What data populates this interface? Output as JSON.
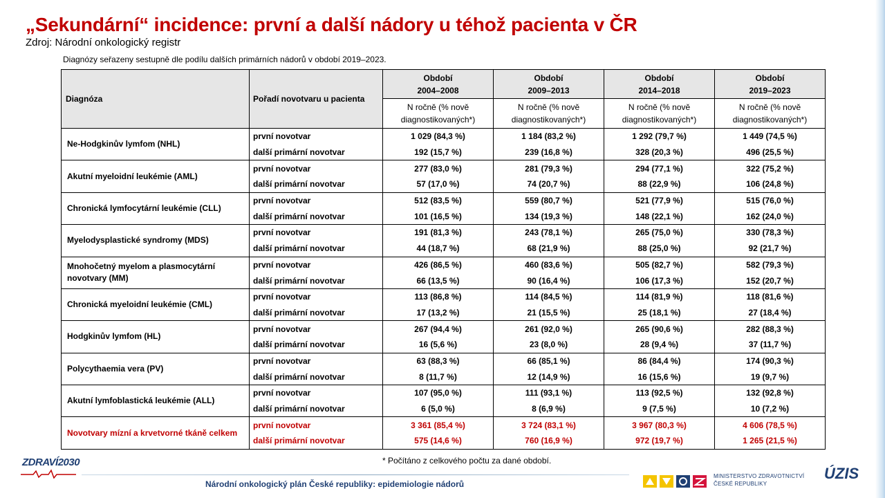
{
  "title": "„Sekundární“ incidence: první a další nádory u téhož pacienta v ČR",
  "source": "Zdroj: Národní onkologický registr",
  "sort_note": "Diagnózy seřazeny sestupně dle podílu dalších primárních nádorů v období 2019–2023.",
  "table": {
    "col_diagnosis": "Diagnóza",
    "col_order": "Pořadí novotvaru u pacienta",
    "periods": [
      {
        "label": "Období",
        "years": "2004–2008"
      },
      {
        "label": "Období",
        "years": "2009–2013"
      },
      {
        "label": "Období",
        "years": "2014–2018"
      },
      {
        "label": "Období",
        "years": "2019–2023"
      }
    ],
    "subheader": "N ročně (% nově diagnostikovaných*)",
    "row_first": "první novotvar",
    "row_next": "další primární novotvar",
    "rows": [
      {
        "diagnosis": "Ne-Hodgkinův lymfom (NHL)",
        "first": [
          "1 029 (84,3 %)",
          "1 184 (83,2 %)",
          "1 292 (79,7 %)",
          "1 449 (74,5 %)"
        ],
        "next": [
          "192 (15,7 %)",
          "239 (16,8 %)",
          "328 (20,3 %)",
          "496 (25,5 %)"
        ]
      },
      {
        "diagnosis": "Akutní myeloidní leukémie (AML)",
        "first": [
          "277 (83,0 %)",
          "281 (79,3 %)",
          "294 (77,1 %)",
          "322 (75,2 %)"
        ],
        "next": [
          "57 (17,0 %)",
          "74 (20,7 %)",
          "88 (22,9 %)",
          "106 (24,8 %)"
        ]
      },
      {
        "diagnosis": "Chronická lymfocytární leukémie (CLL)",
        "first": [
          "512 (83,5 %)",
          "559 (80,7 %)",
          "521 (77,9 %)",
          "515 (76,0 %)"
        ],
        "next": [
          "101 (16,5 %)",
          "134 (19,3 %)",
          "148 (22,1 %)",
          "162 (24,0 %)"
        ]
      },
      {
        "diagnosis": "Myelodysplastické syndromy (MDS)",
        "first": [
          "191 (81,3 %)",
          "243 (78,1 %)",
          "265 (75,0 %)",
          "330 (78,3 %)"
        ],
        "next": [
          "44 (18,7 %)",
          "68 (21,9 %)",
          "88 (25,0 %)",
          "92 (21,7 %)"
        ]
      },
      {
        "diagnosis": "Mnohočetný myelom a plasmocytární novotvary (MM)",
        "first": [
          "426 (86,5 %)",
          "460 (83,6 %)",
          "505 (82,7 %)",
          "582 (79,3 %)"
        ],
        "next": [
          "66 (13,5 %)",
          "90 (16,4 %)",
          "106 (17,3 %)",
          "152 (20,7 %)"
        ]
      },
      {
        "diagnosis": "Chronická myeloidní leukémie (CML)",
        "first": [
          "113 (86,8 %)",
          "114 (84,5 %)",
          "114 (81,9 %)",
          "118 (81,6 %)"
        ],
        "next": [
          "17 (13,2 %)",
          "21 (15,5 %)",
          "25 (18,1 %)",
          "27 (18,4 %)"
        ]
      },
      {
        "diagnosis": "Hodgkinův lymfom (HL)",
        "first": [
          "267 (94,4 %)",
          "261 (92,0 %)",
          "265 (90,6 %)",
          "282 (88,3 %)"
        ],
        "next": [
          "16 (5,6 %)",
          "23 (8,0 %)",
          "28 (9,4 %)",
          "37 (11,7 %)"
        ]
      },
      {
        "diagnosis": "Polycythaemia vera (PV)",
        "first": [
          "63 (88,3 %)",
          "66 (85,1 %)",
          "86 (84,4 %)",
          "174 (90,3 %)"
        ],
        "next": [
          "8 (11,7 %)",
          "12 (14,9 %)",
          "16 (15,6 %)",
          "19 (9,7 %)"
        ]
      },
      {
        "diagnosis": "Akutní lymfoblastická leukémie (ALL)",
        "first": [
          "107 (95,0 %)",
          "111 (93,1 %)",
          "113 (92,5 %)",
          "132 (92,8 %)"
        ],
        "next": [
          "6 (5,0 %)",
          "8 (6,9 %)",
          "9 (7,5 %)",
          "10 (7,2 %)"
        ]
      }
    ],
    "total": {
      "diagnosis": "Novotvary mízní a krvetvorné tkáně celkem",
      "first": [
        "3 361 (85,4 %)",
        "3 724 (83,1 %)",
        "3 967 (80,3 %)",
        "4 606 (78,5 %)"
      ],
      "next": [
        "575 (14,6 %)",
        "760 (16,9 %)",
        "972 (19,7 %)",
        "1 265 (21,5 %)"
      ]
    }
  },
  "footnote": "* Počítáno z celkového počtu za dané období.",
  "footer": "Národní onkologický plán České republiky: epidemiologie nádorů",
  "logos": {
    "zdravi": "ZDRAVÍ2030",
    "ministry_line1": "MINISTERSTVO ZDRAVOTNICTVÍ",
    "ministry_line2": "ČESKÉ REPUBLIKY",
    "uzis": "ÚZIS"
  },
  "colors": {
    "title": "#c00000",
    "total_row": "#c00000",
    "header_bg": "#e6e6e6",
    "footer_text": "#1f3f73"
  }
}
